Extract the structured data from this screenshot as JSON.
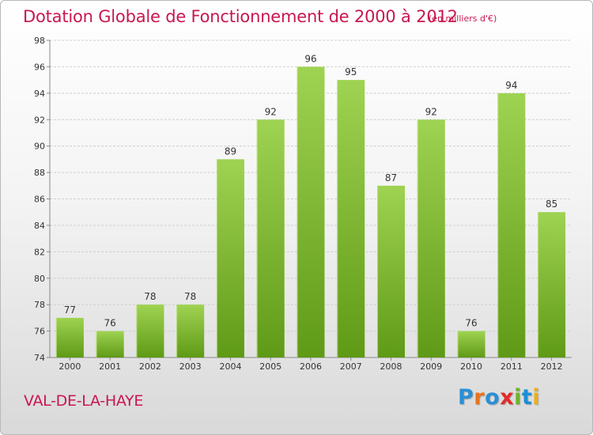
{
  "title": "Dotation Globale de Fonctionnement de 2000 à 2012",
  "units_note": "(en milliers d'€)",
  "location": "VAL-DE-LA-HAYE",
  "logo": {
    "text": "Proxiti",
    "letter_colors": [
      "#2a8fd6",
      "#e8731c",
      "#2a8fd6",
      "#e32a2a",
      "#6cb52a",
      "#1b8fd6",
      "#e8b21c"
    ]
  },
  "colors": {
    "title": "#c8174f",
    "bar_light": "#9fd352",
    "bar_dark": "#5f9a16",
    "grid": "#cfcfcf",
    "axis": "#888888"
  },
  "chart_data": {
    "type": "bar",
    "title": "Dotation Globale de Fonctionnement de 2000 à 2012",
    "xlabel": "",
    "ylabel": "",
    "categories": [
      "2000",
      "2001",
      "2002",
      "2003",
      "2004",
      "2005",
      "2006",
      "2007",
      "2008",
      "2009",
      "2010",
      "2011",
      "2012"
    ],
    "values": [
      77,
      76,
      78,
      78,
      89,
      92,
      96,
      95,
      87,
      92,
      76,
      94,
      85
    ],
    "ylim": [
      74,
      98
    ],
    "yticks": [
      74,
      76,
      78,
      80,
      82,
      84,
      86,
      88,
      90,
      92,
      94,
      96,
      98
    ],
    "grid": true,
    "show_value_labels": true
  }
}
